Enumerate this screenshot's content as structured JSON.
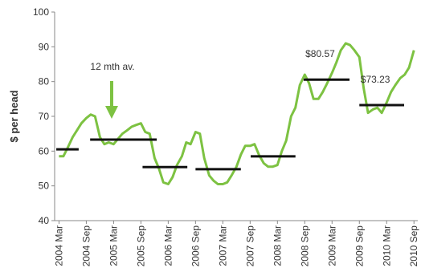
{
  "chart_data": {
    "type": "line",
    "ylabel": "$ per head",
    "ylim": [
      40,
      100
    ],
    "yticks": [
      40,
      50,
      60,
      70,
      80,
      90,
      100
    ],
    "xlim": [
      2004.09,
      2010.74
    ],
    "xticks": [
      {
        "value": 2004.17,
        "label": "2004 Mar"
      },
      {
        "value": 2004.67,
        "label": "2004 Sep"
      },
      {
        "value": 2005.17,
        "label": "2005 Mar"
      },
      {
        "value": 2005.67,
        "label": "2005 Sep"
      },
      {
        "value": 2006.17,
        "label": "2006 Mar"
      },
      {
        "value": 2006.67,
        "label": "2006 Sep"
      },
      {
        "value": 2007.17,
        "label": "2007 Mar"
      },
      {
        "value": 2007.67,
        "label": "2007 Sep"
      },
      {
        "value": 2008.17,
        "label": "2008 Mar"
      },
      {
        "value": 2008.67,
        "label": "2008 Sep"
      },
      {
        "value": 2009.17,
        "label": "2009 Mar"
      },
      {
        "value": 2009.67,
        "label": "2009 Sep"
      },
      {
        "value": 2010.17,
        "label": "2010 Mar"
      },
      {
        "value": 2010.67,
        "label": "2010 Sep"
      }
    ],
    "x": [
      2004.17,
      2004.25,
      2004.33,
      2004.42,
      2004.5,
      2004.58,
      2004.67,
      2004.75,
      2004.83,
      2004.92,
      2005,
      2005.08,
      2005.17,
      2005.25,
      2005.33,
      2005.42,
      2005.5,
      2005.58,
      2005.67,
      2005.75,
      2005.83,
      2005.92,
      2006,
      2006.08,
      2006.17,
      2006.25,
      2006.33,
      2006.42,
      2006.5,
      2006.58,
      2006.67,
      2006.75,
      2006.83,
      2006.92,
      2007,
      2007.08,
      2007.17,
      2007.25,
      2007.33,
      2007.42,
      2007.5,
      2007.58,
      2007.67,
      2007.75,
      2007.83,
      2007.92,
      2008,
      2008.08,
      2008.17,
      2008.25,
      2008.33,
      2008.42,
      2008.5,
      2008.58,
      2008.67,
      2008.75,
      2008.83,
      2008.92,
      2009,
      2009.08,
      2009.17,
      2009.25,
      2009.33,
      2009.42,
      2009.5,
      2009.58,
      2009.67,
      2009.75,
      2009.83,
      2009.92,
      2010,
      2010.08,
      2010.17,
      2010.25,
      2010.33,
      2010.42,
      2010.5,
      2010.58,
      2010.67
    ],
    "series": [
      {
        "color": "#7dc242",
        "values": [
          58.5,
          58.5,
          61,
          64,
          66,
          68,
          69.5,
          70.5,
          70,
          64,
          62,
          62.5,
          62,
          63.5,
          65,
          66,
          67,
          67.5,
          68,
          65.5,
          65,
          58,
          55,
          51,
          50.5,
          52.5,
          56,
          58.5,
          62.5,
          62,
          65.5,
          65,
          58,
          53,
          51.5,
          50.5,
          50.5,
          51,
          53,
          55.5,
          59,
          61.5,
          61.5,
          62,
          59,
          56.5,
          55.5,
          55.5,
          56,
          60,
          63,
          70,
          72.5,
          79,
          82,
          79.5,
          75,
          75,
          77,
          79.5,
          82.5,
          85.5,
          89,
          91,
          90.5,
          89,
          87,
          78,
          71,
          72,
          72.5,
          71,
          74,
          77,
          79,
          81,
          82,
          84,
          89
        ]
      }
    ],
    "averages": {
      "color": "#111111",
      "x0": [
        2004.12,
        2004.74,
        2005.7,
        2006.67,
        2007.68,
        2008.65,
        2009.67
      ],
      "x1": [
        2004.53,
        2005.96,
        2006.52,
        2007.5,
        2008.5,
        2009.49,
        2010.49
      ],
      "values": [
        60.5,
        63.3,
        55.4,
        54.8,
        58.5,
        80.57,
        73.23
      ],
      "value_labels": [
        null,
        null,
        null,
        null,
        null,
        "$80.57",
        "$73.23"
      ]
    },
    "annotation": "12 mth av."
  }
}
